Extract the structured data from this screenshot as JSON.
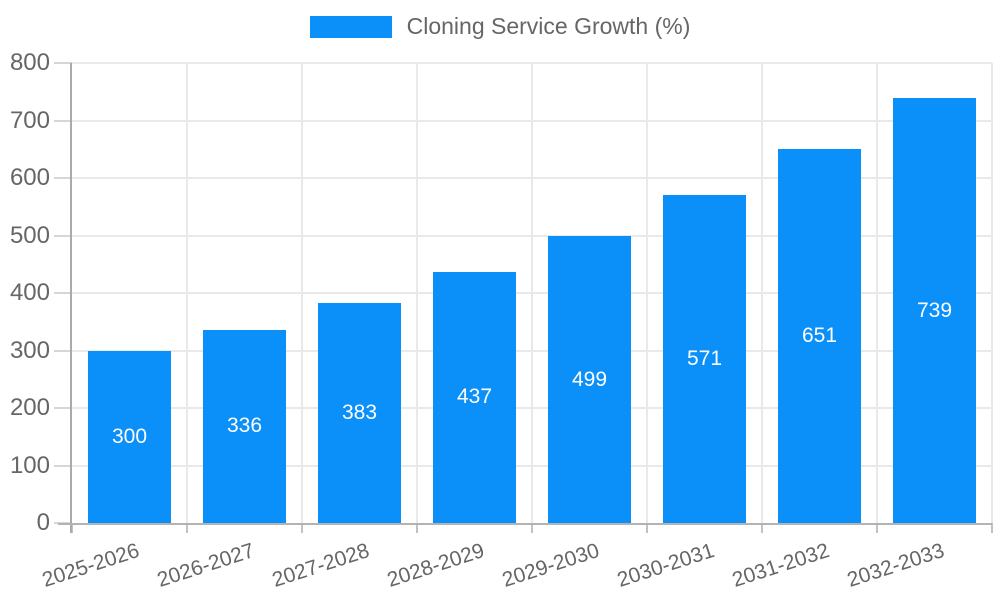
{
  "legend": {
    "label": "Cloning Service Growth (%)"
  },
  "chart_data": {
    "type": "bar",
    "title": "Cloning Service Growth (%)",
    "categories": [
      "2025-2026",
      "2026-2027",
      "2027-2028",
      "2028-2029",
      "2029-2030",
      "2030-2031",
      "2031-2032",
      "2032-2033"
    ],
    "values": [
      300,
      336,
      383,
      437,
      499,
      571,
      651,
      739
    ],
    "value_labels": [
      "300",
      "336",
      "383",
      "437",
      "499",
      "571",
      "651",
      "739"
    ],
    "xlabel": "",
    "ylabel": "",
    "ylim": [
      0,
      800
    ],
    "yticks": [
      0,
      100,
      200,
      300,
      400,
      500,
      600,
      700,
      800
    ],
    "grid": true,
    "legend_position": "top",
    "x_label_rotation_deg": -18,
    "colors": {
      "bar": "#0a90f8",
      "value_label": "#ffffff",
      "axis_line": "#aaaaaa",
      "grid_line": "#e9e9e9",
      "tick": "#c2c2c2",
      "tick_text": "#666666",
      "legend_text": "#666666",
      "background": "#ffffff"
    }
  }
}
